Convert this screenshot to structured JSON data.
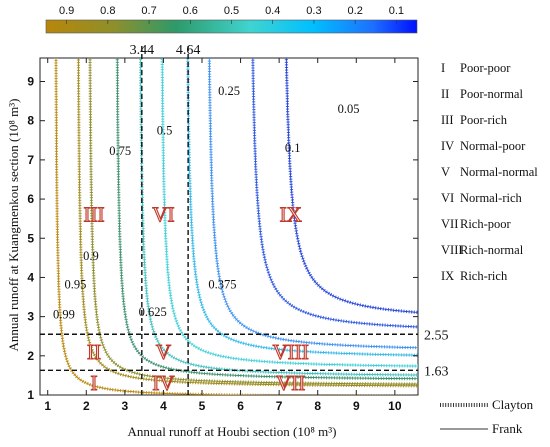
{
  "chart_data": {
    "type": "line",
    "title": "",
    "xlabel": "Annual runoff at Houbi section (10⁸ m³)",
    "ylabel": "Annual runoff at Kuangmenkou section (10⁸ m³)",
    "xlim": [
      0.8,
      10.6
    ],
    "ylim": [
      1.0,
      9.6
    ],
    "x_ticks": [
      "1",
      "2",
      "3",
      "4",
      "5",
      "6",
      "7",
      "8",
      "9",
      "10"
    ],
    "y_ticks": [
      "1",
      "2",
      "3",
      "4",
      "5",
      "6",
      "7",
      "8",
      "9"
    ],
    "grid": false,
    "colorbar": {
      "ticks": [
        "0.9",
        "0.8",
        "0.7",
        "0.6",
        "0.5",
        "0.4",
        "0.3",
        "0.2",
        "0.1"
      ],
      "range": [
        0.95,
        0.05
      ],
      "colors": [
        "#b8860b",
        "#8a8f2c",
        "#2e8b57",
        "#20b2aa",
        "#48d1cc",
        "#00bfff",
        "#1e90ff",
        "#0000ff"
      ]
    },
    "reference_lines": {
      "vertical": [
        {
          "value": 3.44,
          "label": "3.44"
        },
        {
          "value": 4.64,
          "label": "4.64"
        }
      ],
      "horizontal": [
        {
          "value": 2.55,
          "label": "2.55"
        },
        {
          "value": 1.63,
          "label": "1.63"
        }
      ]
    },
    "series": [
      {
        "name": "Clayton",
        "style": "dotted"
      },
      {
        "name": "Frank",
        "style": "solid"
      }
    ],
    "contour_levels": [
      {
        "value": 0.99,
        "label": "0.99",
        "color": "#b8860b",
        "cx": 1.18,
        "cy": 1.1
      },
      {
        "value": 0.95,
        "label": "0.95",
        "color": "#a08a1a",
        "cx": 1.75,
        "cy": 1.4
      },
      {
        "value": 0.9,
        "label": "0.9",
        "color": "#8c8c2a",
        "cx": 2.05,
        "cy": 1.45
      },
      {
        "value": 0.75,
        "label": "0.75",
        "color": "#3a8f6a",
        "cx": 2.75,
        "cy": 1.6
      },
      {
        "value": 0.625,
        "label": "0.625",
        "color": "#40c0c0",
        "cx": 3.35,
        "cy": 1.7
      },
      {
        "value": 0.5,
        "label": "0.5",
        "color": "#40d0d8",
        "cx": 3.9,
        "cy": 1.95
      },
      {
        "value": 0.375,
        "label": "0.375",
        "color": "#30b8e8",
        "cx": 4.55,
        "cy": 2.25
      },
      {
        "value": 0.25,
        "label": "0.25",
        "color": "#3a8ff0",
        "cx": 5.1,
        "cy": 2.45
      },
      {
        "value": 0.1,
        "label": "0.1",
        "color": "#2a55e0",
        "cx": 6.2,
        "cy": 3.0
      },
      {
        "value": 0.05,
        "label": "0.05",
        "color": "#2040d8",
        "cx": 7.05,
        "cy": 3.35
      }
    ],
    "regions": [
      {
        "label": "III",
        "x": 2.2,
        "y": 5.6
      },
      {
        "label": "VI",
        "x": 4.0,
        "y": 5.6
      },
      {
        "label": "IX",
        "x": 7.3,
        "y": 5.6
      },
      {
        "label": "II",
        "x": 2.2,
        "y": 2.1
      },
      {
        "label": "V",
        "x": 4.0,
        "y": 2.1
      },
      {
        "label": "VIII",
        "x": 7.3,
        "y": 2.1
      },
      {
        "label": "I",
        "x": 2.2,
        "y": 1.3
      },
      {
        "label": "IV",
        "x": 4.0,
        "y": 1.3
      },
      {
        "label": "VII",
        "x": 7.3,
        "y": 1.3
      }
    ],
    "region_legend": [
      {
        "numeral": "I",
        "text": "Poor-poor"
      },
      {
        "numeral": "II",
        "text": "Poor-normal"
      },
      {
        "numeral": "III",
        "text": "Poor-rich"
      },
      {
        "numeral": "IV",
        "text": "Normal-poor"
      },
      {
        "numeral": "V",
        "text": "Normal-normal"
      },
      {
        "numeral": "VI",
        "text": "Normal-rich"
      },
      {
        "numeral": "VII",
        "text": "Rich-poor"
      },
      {
        "numeral": "VIII",
        "text": "Rich-normal"
      },
      {
        "numeral": "IX",
        "text": "Rich-rich"
      }
    ],
    "line_legend": [
      {
        "label": "Clayton",
        "style": "dotted"
      },
      {
        "label": "Frank",
        "style": "solid"
      }
    ]
  }
}
